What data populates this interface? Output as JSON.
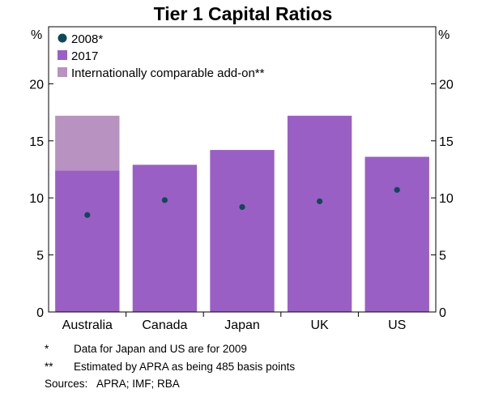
{
  "chart_data": {
    "type": "bar",
    "title": "Tier 1 Capital Ratios",
    "categories": [
      "Australia",
      "Canada",
      "Japan",
      "UK",
      "US"
    ],
    "ylim": [
      0,
      25
    ],
    "yticks": [
      0,
      5,
      10,
      15,
      20
    ],
    "left_unit": "%",
    "right_unit": "%",
    "series": [
      {
        "name": "2017",
        "kind": "bar",
        "color": "#9a5fc4",
        "values": [
          12.4,
          12.9,
          14.2,
          17.2,
          13.6
        ]
      },
      {
        "name": "Internationally comparable add-on**",
        "kind": "stacked-bar",
        "color": "#b892c0",
        "values": [
          4.8,
          0,
          0,
          0,
          0
        ]
      },
      {
        "name": "2008*",
        "kind": "dot",
        "color": "#0d4a57",
        "values": [
          8.5,
          9.8,
          9.2,
          9.7,
          10.7
        ]
      }
    ],
    "legend": [
      {
        "label": "2008*",
        "marker": "dot",
        "color": "#0d4a57"
      },
      {
        "label": "2017",
        "marker": "square",
        "color": "#9a5fc4"
      },
      {
        "label": "Internationally comparable add-on**",
        "marker": "square",
        "color": "#b892c0"
      }
    ],
    "legend_position": "top-left"
  },
  "notes": [
    {
      "mark": "*",
      "text": "Data for Japan and US are for 2009"
    },
    {
      "mark": "**",
      "text": "Estimated by APRA as being 485 basis points"
    }
  ],
  "sources": {
    "label": "Sources:",
    "text": "APRA; IMF; RBA"
  }
}
